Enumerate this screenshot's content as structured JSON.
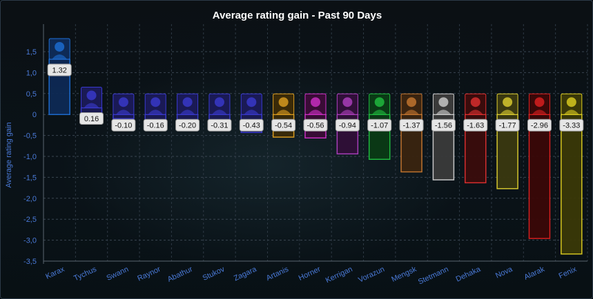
{
  "chart_data": {
    "type": "bar",
    "title": "Average rating gain - Past 90 Days",
    "xlabel": "",
    "ylabel": "Average rating gain",
    "ylim": [
      -3.5,
      1.5
    ],
    "yticks": [
      "1,5",
      "1,0",
      "0,5",
      "0",
      "-0,5",
      "-1,0",
      "-1,5",
      "-2,0",
      "-2,5",
      "-3,0",
      "-3,5"
    ],
    "ytick_values": [
      1.5,
      1.0,
      0.5,
      0,
      -0.5,
      -1.0,
      -1.5,
      -2.0,
      -2.5,
      -3.0,
      -3.5
    ],
    "grid": true,
    "categories": [
      "Karax",
      "Tychus",
      "Swann",
      "Raynor",
      "Abathur",
      "Stukov",
      "Zagara",
      "Artanis",
      "Horner",
      "Kerrigan",
      "Vorazun",
      "Mengsk",
      "Stetmann",
      "Dehaka",
      "Nova",
      "Alarak",
      "Fenix"
    ],
    "values": [
      1.32,
      0.16,
      -0.1,
      -0.16,
      -0.2,
      -0.31,
      -0.43,
      -0.54,
      -0.56,
      -0.94,
      -1.07,
      -1.37,
      -1.56,
      -1.63,
      -1.77,
      -2.96,
      -3.33
    ],
    "value_labels": [
      "1.32",
      "0.16",
      "-0.10",
      "-0.16",
      "-0.20",
      "-0.31",
      "-0.43",
      "-0.54",
      "-0.56",
      "-0.94",
      "-1.07",
      "-1.37",
      "-1.56",
      "-1.63",
      "-1.77",
      "-2.96",
      "-3.33"
    ],
    "colors": [
      "#1d6fd6",
      "#3a3ad0",
      "#3a3ad0",
      "#3a3ad0",
      "#3a3ad0",
      "#3a3ad0",
      "#3a3ad0",
      "#e0a020",
      "#d030c8",
      "#b040c0",
      "#20c040",
      "#c87830",
      "#d0d0d0",
      "#e03030",
      "#e0d030",
      "#e02020",
      "#e0d020"
    ],
    "fills": [
      "#0e2a55",
      "#1a1a55",
      "#1a1a55",
      "#1a1a55",
      "#1a1a55",
      "#1a1a55",
      "#1a1a55",
      "#3a2a08",
      "#3a0c36",
      "#300f38",
      "#0a3a15",
      "#3a2410",
      "#3a3a3a",
      "#3a0c0c",
      "#3a3810",
      "#3a0808",
      "#3a3808"
    ],
    "icons": [
      "karax-portrait",
      "tychus-portrait",
      "swann-portrait",
      "raynor-portrait",
      "abathur-portrait",
      "stukov-portrait",
      "zagara-portrait",
      "artanis-portrait",
      "horner-portrait",
      "kerrigan-portrait",
      "vorazun-portrait",
      "mengsk-portrait",
      "stetmann-portrait",
      "dehaka-portrait",
      "nova-portrait",
      "alarak-portrait",
      "fenix-portrait"
    ]
  }
}
